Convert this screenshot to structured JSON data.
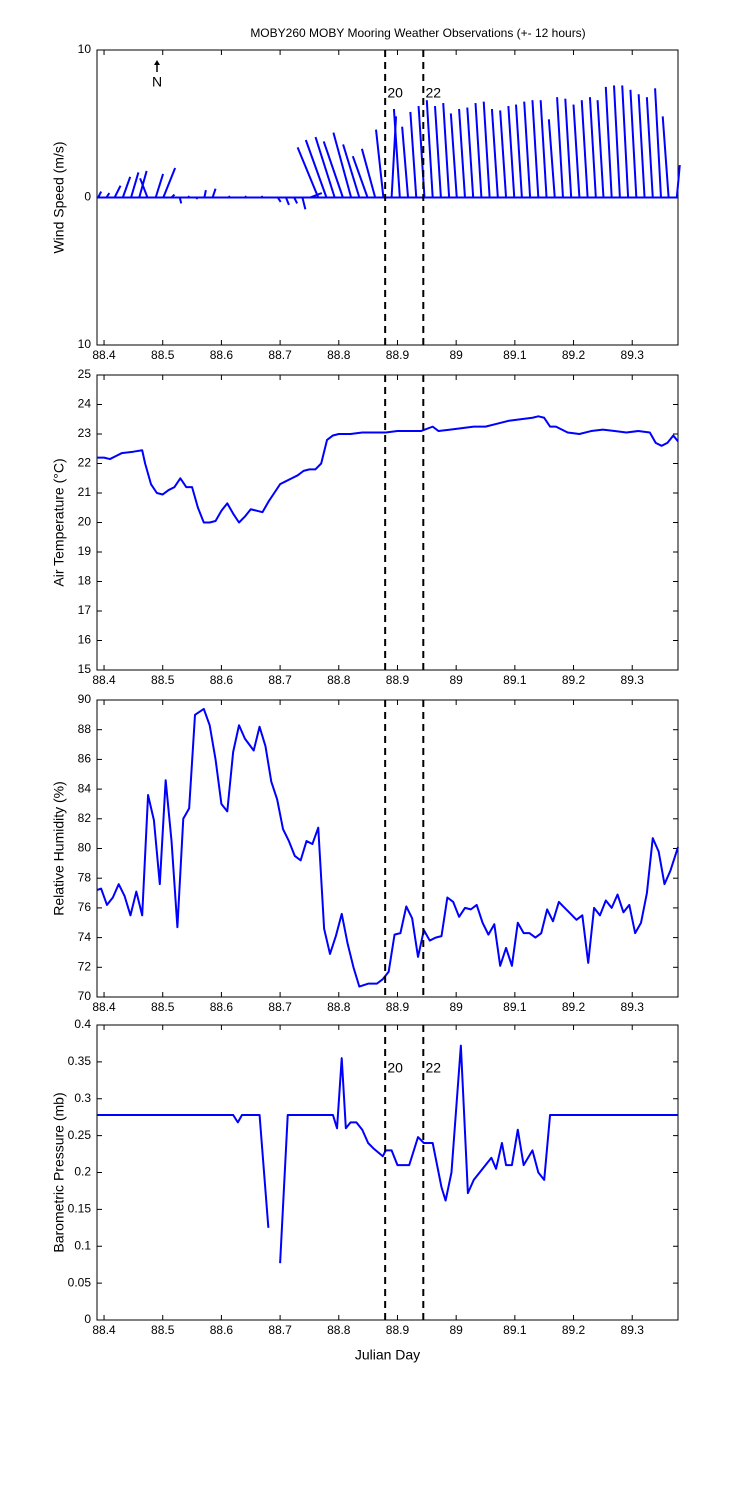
{
  "title": "MOBY260 MOBY Mooring Weather Observations (+- 12 hours)",
  "north": "N",
  "markers": {
    "x": [
      88.879,
      88.944
    ],
    "labels": [
      "20",
      "22"
    ],
    "color": "#cc2222"
  },
  "chart_data": [
    {
      "type": "stick",
      "ylabel": "Wind Speed (m/s)",
      "color": "#0000ff",
      "show_marker_labels": true,
      "xlim": [
        88.388,
        89.378
      ],
      "xticks": [
        88.4,
        88.5,
        88.6,
        88.7,
        88.8,
        88.9,
        89,
        89.1,
        89.2,
        89.3
      ],
      "ylim": [
        -10,
        10
      ],
      "yticks": [
        {
          "value": -10,
          "label": "10"
        },
        0,
        10
      ],
      "x": [
        88.39,
        88.404,
        88.418,
        88.432,
        88.446,
        88.46,
        88.474,
        88.488,
        88.501,
        88.515,
        88.529,
        88.543,
        88.557,
        88.571,
        88.585,
        88.599,
        88.612,
        88.626,
        88.64,
        88.654,
        88.668,
        88.682,
        88.696,
        88.71,
        88.724,
        88.738,
        88.751,
        88.765,
        88.779,
        88.793,
        88.807,
        88.821,
        88.835,
        88.849,
        88.862,
        88.876,
        88.89,
        88.904,
        88.918,
        88.932,
        88.946,
        88.96,
        88.974,
        88.988,
        89.001,
        89.015,
        89.029,
        89.043,
        89.057,
        89.071,
        89.085,
        89.099,
        89.112,
        89.126,
        89.14,
        89.154,
        89.168,
        89.182,
        89.196,
        89.21,
        89.224,
        89.238,
        89.251,
        89.265,
        89.279,
        89.293,
        89.307,
        89.321,
        89.335,
        89.349,
        89.362,
        89.376
      ],
      "u": [
        0.2,
        0.2,
        0.4,
        0.5,
        0.5,
        0.5,
        -0.5,
        0.5,
        0.8,
        0.2,
        0.1,
        0.1,
        0.1,
        0.1,
        0.2,
        0.1,
        0.1,
        0.1,
        0.1,
        0.1,
        0.1,
        0.1,
        0.2,
        0.2,
        0.2,
        0.2,
        0.8,
        -1.4,
        -1.4,
        -1.3,
        -1.3,
        -1.2,
        -1.1,
        -1.0,
        -0.9,
        -0.5,
        0.3,
        -0.4,
        -0.4,
        -0.4,
        -0.4,
        -0.4,
        -0.4,
        -0.4,
        -0.4,
        -0.4,
        -0.4,
        -0.4,
        -0.4,
        -0.4,
        -0.4,
        -0.4,
        -0.4,
        -0.4,
        -0.4,
        -0.4,
        -0.4,
        -0.4,
        -0.4,
        -0.4,
        -0.4,
        -0.4,
        -0.4,
        -0.4,
        -0.4,
        -0.4,
        -0.4,
        -0.4,
        -0.4,
        -0.4,
        -0.4,
        0.2
      ],
      "v": [
        0.4,
        0.3,
        0.8,
        1.4,
        1.7,
        1.8,
        1.3,
        1.6,
        2.0,
        0.2,
        -0.4,
        0.1,
        -0.1,
        0.5,
        0.6,
        0,
        0.1,
        0,
        0.1,
        0,
        0.1,
        0,
        -0.3,
        -0.5,
        -0.4,
        -0.8,
        0.3,
        3.4,
        3.9,
        4.1,
        3.8,
        4.4,
        3.6,
        2.8,
        3.3,
        4.6,
        5.5,
        6.0,
        4.8,
        5.8,
        6.2,
        6.6,
        6.2,
        6.4,
        5.7,
        6.0,
        6.1,
        6.4,
        6.5,
        6.0,
        5.9,
        6.2,
        6.3,
        6.5,
        6.6,
        6.6,
        5.3,
        6.8,
        6.7,
        6.3,
        6.6,
        6.8,
        6.6,
        7.5,
        7.6,
        7.6,
        7.3,
        7.0,
        6.8,
        7.4,
        5.5,
        2.2
      ]
    },
    {
      "type": "line",
      "ylabel": "Air Temperature (°C)",
      "color": "#0000ff",
      "show_marker_labels": false,
      "xlim": [
        88.388,
        89.378
      ],
      "xticks": [
        88.4,
        88.5,
        88.6,
        88.7,
        88.8,
        88.9,
        89,
        89.1,
        89.2,
        89.3
      ],
      "ylim": [
        15,
        25
      ],
      "yticks": [
        15,
        16,
        17,
        18,
        19,
        20,
        21,
        22,
        23,
        24,
        25
      ],
      "x": [
        88.388,
        88.4,
        88.41,
        88.42,
        88.43,
        88.45,
        88.465,
        88.47,
        88.48,
        88.49,
        88.5,
        88.51,
        88.52,
        88.53,
        88.54,
        88.55,
        88.56,
        88.57,
        88.58,
        88.59,
        88.6,
        88.61,
        88.62,
        88.63,
        88.64,
        88.65,
        88.66,
        88.67,
        88.68,
        88.69,
        88.7,
        88.71,
        88.72,
        88.73,
        88.74,
        88.75,
        88.76,
        88.77,
        88.78,
        88.79,
        88.8,
        88.82,
        88.84,
        88.86,
        88.88,
        88.9,
        88.92,
        88.94,
        88.96,
        88.97,
        88.99,
        89.01,
        89.03,
        89.05,
        89.07,
        89.09,
        89.11,
        89.13,
        89.14,
        89.15,
        89.16,
        89.17,
        89.19,
        89.21,
        89.23,
        89.25,
        89.27,
        89.29,
        89.31,
        89.33,
        89.34,
        89.35,
        89.36,
        89.37,
        89.378
      ],
      "values": [
        22.2,
        22.2,
        22.15,
        22.25,
        22.35,
        22.4,
        22.45,
        22.0,
        21.3,
        21.0,
        20.95,
        21.1,
        21.2,
        21.5,
        21.2,
        21.2,
        20.5,
        20.0,
        20.0,
        20.05,
        20.4,
        20.65,
        20.3,
        20.0,
        20.2,
        20.45,
        20.4,
        20.35,
        20.7,
        21.0,
        21.3,
        21.4,
        21.5,
        21.6,
        21.75,
        21.8,
        21.8,
        22.0,
        22.8,
        22.95,
        23.0,
        23.0,
        23.05,
        23.05,
        23.05,
        23.1,
        23.1,
        23.1,
        23.25,
        23.1,
        23.15,
        23.2,
        23.25,
        23.25,
        23.35,
        23.45,
        23.5,
        23.55,
        23.6,
        23.55,
        23.25,
        23.25,
        23.05,
        23.0,
        23.1,
        23.15,
        23.1,
        23.05,
        23.1,
        23.05,
        22.7,
        22.6,
        22.7,
        22.95,
        22.75
      ]
    },
    {
      "type": "line",
      "ylabel": "Relative Humidity (%)",
      "color": "#0000ff",
      "show_marker_labels": false,
      "xlim": [
        88.388,
        89.378
      ],
      "xticks": [
        88.4,
        88.5,
        88.6,
        88.7,
        88.8,
        88.9,
        89,
        89.1,
        89.2,
        89.3
      ],
      "ylim": [
        70,
        90
      ],
      "yticks": [
        70,
        72,
        74,
        76,
        78,
        80,
        82,
        84,
        86,
        88,
        90
      ],
      "x": [
        88.388,
        88.395,
        88.405,
        88.415,
        88.425,
        88.435,
        88.445,
        88.455,
        88.465,
        88.475,
        88.485,
        88.495,
        88.505,
        88.515,
        88.525,
        88.535,
        88.545,
        88.555,
        88.57,
        88.58,
        88.59,
        88.6,
        88.61,
        88.62,
        88.63,
        88.64,
        88.655,
        88.665,
        88.675,
        88.685,
        88.695,
        88.705,
        88.715,
        88.725,
        88.735,
        88.745,
        88.755,
        88.765,
        88.775,
        88.785,
        88.795,
        88.805,
        88.815,
        88.825,
        88.835,
        88.85,
        88.865,
        88.875,
        88.885,
        88.895,
        88.905,
        88.915,
        88.925,
        88.935,
        88.945,
        88.955,
        88.965,
        88.975,
        88.985,
        88.995,
        89.005,
        89.015,
        89.025,
        89.035,
        89.045,
        89.055,
        89.065,
        89.075,
        89.085,
        89.095,
        89.105,
        89.115,
        89.125,
        89.135,
        89.145,
        89.155,
        89.165,
        89.175,
        89.185,
        89.195,
        89.205,
        89.215,
        89.225,
        89.235,
        89.245,
        89.255,
        89.265,
        89.275,
        89.285,
        89.295,
        89.305,
        89.315,
        89.325,
        89.335,
        89.345,
        89.355,
        89.365,
        89.378
      ],
      "values": [
        77.2,
        77.3,
        76.2,
        76.7,
        77.6,
        76.8,
        75.5,
        77.1,
        75.5,
        83.6,
        81.9,
        77.6,
        84.6,
        80.5,
        74.7,
        82.0,
        82.7,
        89.0,
        89.4,
        88.3,
        86.0,
        83.0,
        82.5,
        86.5,
        88.3,
        87.4,
        86.6,
        88.2,
        86.9,
        84.5,
        83.3,
        81.3,
        80.5,
        79.5,
        79.2,
        80.5,
        80.3,
        81.4,
        74.6,
        72.9,
        74.1,
        75.6,
        73.6,
        72.0,
        70.7,
        70.9,
        70.9,
        71.2,
        71.7,
        74.2,
        74.3,
        76.1,
        75.3,
        72.7,
        74.5,
        73.8,
        74.0,
        74.1,
        76.7,
        76.4,
        75.4,
        76.0,
        75.9,
        76.2,
        75.0,
        74.2,
        74.9,
        72.1,
        73.3,
        72.1,
        75.0,
        74.3,
        74.3,
        74.0,
        74.3,
        75.9,
        75.1,
        76.4,
        76.0,
        75.6,
        75.2,
        75.5,
        72.3,
        76.0,
        75.5,
        76.5,
        76.0,
        76.9,
        75.7,
        76.2,
        74.3,
        75.0,
        77.0,
        80.7,
        79.8,
        77.6,
        78.5,
        80.1
      ]
    },
    {
      "type": "line",
      "ylabel": "Barometric Pressure (mb)",
      "xlabel": "Julian Day",
      "color": "#0000ff",
      "show_marker_labels": true,
      "xlim": [
        88.388,
        89.378
      ],
      "xticks": [
        88.4,
        88.5,
        88.6,
        88.7,
        88.8,
        88.9,
        89,
        89.1,
        89.2,
        89.3
      ],
      "ylim": [
        0,
        0.4
      ],
      "yticks": [
        0,
        0.05,
        0.1,
        0.15,
        0.2,
        0.25,
        0.3,
        0.35,
        0.4
      ],
      "x": [
        88.388,
        88.62,
        88.628,
        88.635,
        88.665,
        88.68,
        88.69,
        88.7,
        88.713,
        88.79,
        88.797,
        88.805,
        88.812,
        88.82,
        88.83,
        88.84,
        88.85,
        88.86,
        88.875,
        88.88,
        88.89,
        88.9,
        88.92,
        88.935,
        88.945,
        88.96,
        88.965,
        88.975,
        88.982,
        88.992,
        89.008,
        89.02,
        89.03,
        89.05,
        89.06,
        89.068,
        89.078,
        89.085,
        89.095,
        89.105,
        89.115,
        89.13,
        89.14,
        89.15,
        89.16,
        89.378
      ],
      "values": [
        0.278,
        0.278,
        0.268,
        0.278,
        0.278,
        0.125,
        null,
        0.077,
        0.278,
        0.278,
        0.26,
        0.355,
        0.26,
        0.268,
        0.268,
        0.258,
        0.24,
        0.232,
        0.222,
        0.23,
        0.23,
        0.21,
        0.21,
        0.248,
        0.24,
        0.24,
        0.22,
        0.18,
        0.162,
        0.2,
        0.372,
        0.172,
        0.19,
        0.21,
        0.22,
        0.205,
        0.24,
        0.21,
        0.21,
        0.258,
        0.21,
        0.23,
        0.2,
        0.19,
        0.278,
        0.278
      ]
    }
  ]
}
